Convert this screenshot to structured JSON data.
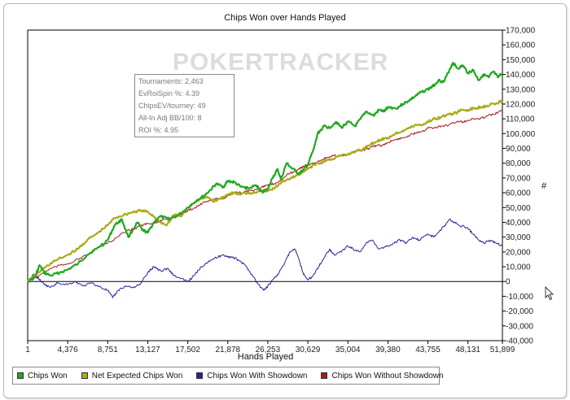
{
  "chart_data": {
    "type": "line",
    "title": "Chips Won over Hands Played",
    "xlabel": "Hands Played",
    "ylabel": "#",
    "watermark": "POKERTRACKER",
    "x_ticks": [
      "1",
      "4,376",
      "8,751",
      "13,127",
      "17,502",
      "21,878",
      "26,253",
      "30,629",
      "35,004",
      "39,380",
      "43,755",
      "48,131",
      "51,899"
    ],
    "y_ticks": [
      "170,000",
      "160,000",
      "150,000",
      "140,000",
      "130,000",
      "120,000",
      "110,000",
      "100,000",
      "90,000",
      "80,000",
      "70,000",
      "60,000",
      "50,000",
      "40,000",
      "30,000",
      "20,000",
      "10,000",
      "0",
      "-10,000",
      "-20,000",
      "-30,000",
      "-40,000"
    ],
    "xlim": [
      1,
      51899
    ],
    "ylim": [
      -40000,
      170000
    ],
    "grid": false,
    "legend_position": "bottom",
    "stats": [
      "Tournaments: 2,463",
      "EvRoiSpin %: 4.39",
      "ChipsEV/tourney: 49",
      "All-In Adj BB/100: 8",
      "ROI %: 4.95"
    ],
    "series": [
      {
        "name": "Chips Won",
        "color": "#1fa81f",
        "width": 2.2,
        "points": [
          [
            1,
            0
          ],
          [
            800,
            3000
          ],
          [
            1300,
            11000
          ],
          [
            1800,
            6000
          ],
          [
            2500,
            4000
          ],
          [
            3500,
            6000
          ],
          [
            4376,
            8000
          ],
          [
            5500,
            12000
          ],
          [
            6500,
            18000
          ],
          [
            7500,
            22000
          ],
          [
            8751,
            28000
          ],
          [
            9500,
            38000
          ],
          [
            10300,
            42000
          ],
          [
            11000,
            30000
          ],
          [
            12000,
            40000
          ],
          [
            12500,
            35000
          ],
          [
            13127,
            33000
          ],
          [
            13800,
            40000
          ],
          [
            14500,
            44000
          ],
          [
            15500,
            42000
          ],
          [
            16500,
            45000
          ],
          [
            17502,
            50000
          ],
          [
            18500,
            55000
          ],
          [
            19300,
            58000
          ],
          [
            20000,
            62000
          ],
          [
            20600,
            66000
          ],
          [
            21400,
            64000
          ],
          [
            21878,
            68000
          ],
          [
            22600,
            67000
          ],
          [
            23300,
            64000
          ],
          [
            24200,
            63000
          ],
          [
            25000,
            65000
          ],
          [
            25700,
            60000
          ],
          [
            26253,
            63000
          ],
          [
            26800,
            70000
          ],
          [
            27300,
            76000
          ],
          [
            27700,
            69000
          ],
          [
            28300,
            80000
          ],
          [
            28800,
            77000
          ],
          [
            29600,
            73000
          ],
          [
            30100,
            75000
          ],
          [
            30629,
            79000
          ],
          [
            31300,
            90000
          ],
          [
            31700,
            100000
          ],
          [
            32400,
            105000
          ],
          [
            33000,
            104000
          ],
          [
            33700,
            108000
          ],
          [
            34300,
            104000
          ],
          [
            35004,
            108000
          ],
          [
            35800,
            105000
          ],
          [
            36400,
            110000
          ],
          [
            37000,
            115000
          ],
          [
            37800,
            112000
          ],
          [
            38400,
            116000
          ],
          [
            39000,
            115000
          ],
          [
            39380,
            118000
          ],
          [
            40300,
            117000
          ],
          [
            41000,
            120000
          ],
          [
            41600,
            122000
          ],
          [
            42300,
            125000
          ],
          [
            43000,
            128000
          ],
          [
            43755,
            130000
          ],
          [
            44300,
            132000
          ],
          [
            44900,
            136000
          ],
          [
            45500,
            135000
          ],
          [
            46100,
            143000
          ],
          [
            46500,
            148000
          ],
          [
            47000,
            144000
          ],
          [
            47600,
            146000
          ],
          [
            48131,
            141000
          ],
          [
            48700,
            143000
          ],
          [
            49300,
            136000
          ],
          [
            49800,
            140000
          ],
          [
            50400,
            138000
          ],
          [
            50900,
            142000
          ],
          [
            51400,
            138000
          ],
          [
            51899,
            141000
          ]
        ]
      },
      {
        "name": "Net Expected Chips Won",
        "color": "#aaaa1a",
        "width": 2.2,
        "points": [
          [
            1,
            0
          ],
          [
            1000,
            5000
          ],
          [
            2000,
            10000
          ],
          [
            3000,
            14000
          ],
          [
            4376,
            18000
          ],
          [
            5500,
            22000
          ],
          [
            6500,
            28000
          ],
          [
            7500,
            32000
          ],
          [
            8751,
            38000
          ],
          [
            9500,
            43000
          ],
          [
            10500,
            45000
          ],
          [
            11500,
            47000
          ],
          [
            12300,
            48000
          ],
          [
            13127,
            47000
          ],
          [
            13800,
            44000
          ],
          [
            14500,
            40000
          ],
          [
            15200,
            38000
          ],
          [
            16000,
            45000
          ],
          [
            16800,
            44000
          ],
          [
            17502,
            50000
          ],
          [
            18300,
            54000
          ],
          [
            19000,
            56000
          ],
          [
            19700,
            57000
          ],
          [
            20400,
            54000
          ],
          [
            21000,
            56000
          ],
          [
            21878,
            59000
          ],
          [
            22500,
            60000
          ],
          [
            23200,
            59000
          ],
          [
            24000,
            60000
          ],
          [
            24800,
            60000
          ],
          [
            25500,
            62000
          ],
          [
            26253,
            61000
          ],
          [
            26900,
            63000
          ],
          [
            27600,
            66000
          ],
          [
            28300,
            69000
          ],
          [
            28900,
            70000
          ],
          [
            29500,
            72000
          ],
          [
            30100,
            74000
          ],
          [
            30629,
            76000
          ],
          [
            31300,
            79000
          ],
          [
            32000,
            80000
          ],
          [
            32700,
            82000
          ],
          [
            33400,
            83000
          ],
          [
            34200,
            85000
          ],
          [
            35004,
            86000
          ],
          [
            35800,
            88000
          ],
          [
            36600,
            89000
          ],
          [
            37200,
            92000
          ],
          [
            37900,
            94000
          ],
          [
            38600,
            96000
          ],
          [
            39380,
            97000
          ],
          [
            40200,
            100000
          ],
          [
            41000,
            102000
          ],
          [
            41800,
            104000
          ],
          [
            42500,
            106000
          ],
          [
            43200,
            106000
          ],
          [
            43755,
            108000
          ],
          [
            44500,
            110000
          ],
          [
            45200,
            111000
          ],
          [
            46000,
            113000
          ],
          [
            46800,
            114000
          ],
          [
            47500,
            116000
          ],
          [
            48131,
            116000
          ],
          [
            48800,
            117000
          ],
          [
            49500,
            118000
          ],
          [
            50200,
            119000
          ],
          [
            51000,
            120000
          ],
          [
            51899,
            122000
          ]
        ]
      },
      {
        "name": "Chips Won With Showdown",
        "color": "#23239b",
        "width": 1,
        "points": [
          [
            1,
            0
          ],
          [
            700,
            5000
          ],
          [
            1200,
            2000
          ],
          [
            1800,
            -2000
          ],
          [
            2500,
            -4000
          ],
          [
            3300,
            -1000
          ],
          [
            4376,
            -2000
          ],
          [
            5200,
            0
          ],
          [
            6000,
            -3000
          ],
          [
            7000,
            -1000
          ],
          [
            8000,
            -4000
          ],
          [
            8751,
            -6000
          ],
          [
            9300,
            -11000
          ],
          [
            9900,
            -6000
          ],
          [
            10700,
            -3000
          ],
          [
            11500,
            -4000
          ],
          [
            12300,
            -2000
          ],
          [
            13127,
            6000
          ],
          [
            13800,
            10000
          ],
          [
            14600,
            7000
          ],
          [
            15300,
            9000
          ],
          [
            16000,
            4000
          ],
          [
            16700,
            2000
          ],
          [
            17502,
            0
          ],
          [
            18200,
            4000
          ],
          [
            19000,
            10000
          ],
          [
            19800,
            14000
          ],
          [
            20600,
            16000
          ],
          [
            21300,
            18000
          ],
          [
            21878,
            17000
          ],
          [
            22500,
            16000
          ],
          [
            23200,
            14000
          ],
          [
            23900,
            10000
          ],
          [
            24600,
            4000
          ],
          [
            25200,
            -2000
          ],
          [
            25800,
            -6000
          ],
          [
            26253,
            -3000
          ],
          [
            26900,
            2000
          ],
          [
            27500,
            6000
          ],
          [
            28200,
            14000
          ],
          [
            28700,
            20000
          ],
          [
            29200,
            22000
          ],
          [
            29700,
            14000
          ],
          [
            30100,
            6000
          ],
          [
            30629,
            1000
          ],
          [
            31200,
            4000
          ],
          [
            31800,
            10000
          ],
          [
            32400,
            16000
          ],
          [
            33000,
            22000
          ],
          [
            33500,
            18000
          ],
          [
            34200,
            20000
          ],
          [
            35004,
            24000
          ],
          [
            35600,
            22000
          ],
          [
            36300,
            20000
          ],
          [
            37000,
            26000
          ],
          [
            37700,
            28000
          ],
          [
            38400,
            22000
          ],
          [
            39380,
            24000
          ],
          [
            40000,
            26000
          ],
          [
            40700,
            28000
          ],
          [
            41400,
            26000
          ],
          [
            42100,
            30000
          ],
          [
            42800,
            28000
          ],
          [
            43755,
            32000
          ],
          [
            44400,
            30000
          ],
          [
            45000,
            34000
          ],
          [
            45600,
            38000
          ],
          [
            46100,
            42000
          ],
          [
            46600,
            40000
          ],
          [
            47200,
            38000
          ],
          [
            48131,
            36000
          ],
          [
            48700,
            32000
          ],
          [
            49300,
            28000
          ],
          [
            49900,
            26000
          ],
          [
            50500,
            28000
          ],
          [
            51200,
            26000
          ],
          [
            51899,
            24000
          ]
        ]
      },
      {
        "name": "Chips Won Without Showdown",
        "color": "#a31a1a",
        "width": 1,
        "points": [
          [
            1,
            0
          ],
          [
            1000,
            3000
          ],
          [
            2000,
            7000
          ],
          [
            3000,
            10000
          ],
          [
            4376,
            12000
          ],
          [
            5500,
            15000
          ],
          [
            6500,
            18000
          ],
          [
            7500,
            22000
          ],
          [
            8751,
            26000
          ],
          [
            9800,
            30000
          ],
          [
            10800,
            34000
          ],
          [
            11800,
            36000
          ],
          [
            12500,
            38000
          ],
          [
            13127,
            39000
          ],
          [
            14000,
            40000
          ],
          [
            15000,
            42000
          ],
          [
            16000,
            44000
          ],
          [
            17000,
            46000
          ],
          [
            17502,
            48000
          ],
          [
            18300,
            50000
          ],
          [
            19100,
            53000
          ],
          [
            19900,
            55000
          ],
          [
            20700,
            56000
          ],
          [
            21400,
            56000
          ],
          [
            21878,
            58000
          ],
          [
            22700,
            60000
          ],
          [
            23500,
            60000
          ],
          [
            24300,
            62000
          ],
          [
            25000,
            62000
          ],
          [
            25600,
            64000
          ],
          [
            26253,
            65000
          ],
          [
            26900,
            66000
          ],
          [
            27600,
            68000
          ],
          [
            28300,
            72000
          ],
          [
            29000,
            74000
          ],
          [
            29700,
            76000
          ],
          [
            30200,
            78000
          ],
          [
            30629,
            79000
          ],
          [
            31300,
            80000
          ],
          [
            32000,
            82000
          ],
          [
            32800,
            84000
          ],
          [
            33500,
            85000
          ],
          [
            34300,
            85000
          ],
          [
            35004,
            86000
          ],
          [
            35800,
            88000
          ],
          [
            36600,
            89000
          ],
          [
            37400,
            90000
          ],
          [
            38100,
            92000
          ],
          [
            38800,
            92000
          ],
          [
            39380,
            94000
          ],
          [
            40200,
            96000
          ],
          [
            41000,
            97000
          ],
          [
            41800,
            99000
          ],
          [
            42600,
            101000
          ],
          [
            43300,
            102000
          ],
          [
            43755,
            104000
          ],
          [
            44500,
            104000
          ],
          [
            45300,
            105000
          ],
          [
            46100,
            106000
          ],
          [
            46900,
            108000
          ],
          [
            47600,
            108000
          ],
          [
            48131,
            109000
          ],
          [
            48800,
            110000
          ],
          [
            49500,
            110000
          ],
          [
            50200,
            112000
          ],
          [
            51000,
            113000
          ],
          [
            51899,
            116000
          ]
        ]
      }
    ]
  }
}
